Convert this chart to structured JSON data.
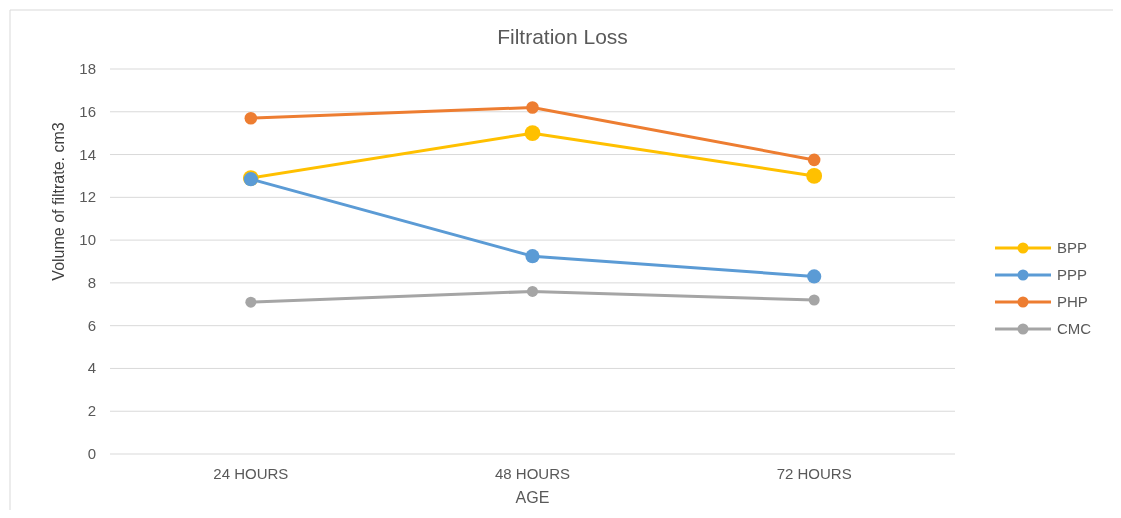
{
  "chart_data": {
    "type": "line",
    "title": "Filtration Loss",
    "xlabel": "AGE",
    "ylabel": "Volume of filtrate. cm3",
    "categories": [
      "24 HOURS",
      "48 HOURS",
      "72 HOURS"
    ],
    "series": [
      {
        "name": "BPP",
        "color": "#ffc000",
        "values": [
          12.9,
          15.0,
          13.0
        ]
      },
      {
        "name": "PPP",
        "color": "#5b9bd5",
        "values": [
          12.85,
          9.25,
          8.3
        ]
      },
      {
        "name": "PHP",
        "color": "#ed7d31",
        "values": [
          15.7,
          16.2,
          13.75
        ]
      },
      {
        "name": "CMC",
        "color": "#a5a5a5",
        "values": [
          7.1,
          7.6,
          7.2
        ]
      }
    ],
    "ylim": [
      0,
      18
    ],
    "yticks": [
      0,
      2,
      4,
      6,
      8,
      10,
      12,
      14,
      16,
      18
    ],
    "grid": "y",
    "legend": "right",
    "marker": "circle"
  }
}
